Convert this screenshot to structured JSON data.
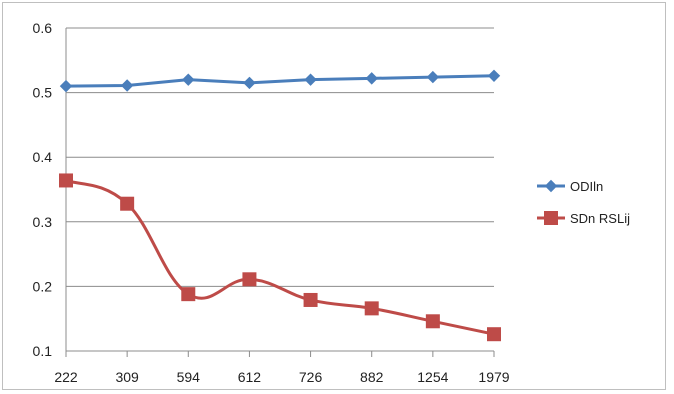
{
  "chart_data": {
    "type": "line",
    "categories": [
      "222",
      "309",
      "594",
      "612",
      "726",
      "882",
      "1254",
      "1979"
    ],
    "y_ticks": [
      "0.1",
      "0.2",
      "0.3",
      "0.4",
      "0.5",
      "0.6"
    ],
    "ylim": [
      0.1,
      0.6
    ],
    "grid": true,
    "legend_position": "right",
    "series": [
      {
        "name": "ODIln",
        "color": "#4a7ebb",
        "marker": "diamond",
        "smooth": false,
        "values": [
          0.51,
          0.511,
          0.52,
          0.515,
          0.52,
          0.522,
          0.524,
          0.526
        ]
      },
      {
        "name": "SDn RSLij",
        "color": "#be4b48",
        "marker": "square",
        "smooth": true,
        "values": [
          0.364,
          0.328,
          0.188,
          0.211,
          0.179,
          0.166,
          0.146,
          0.126
        ]
      }
    ]
  }
}
